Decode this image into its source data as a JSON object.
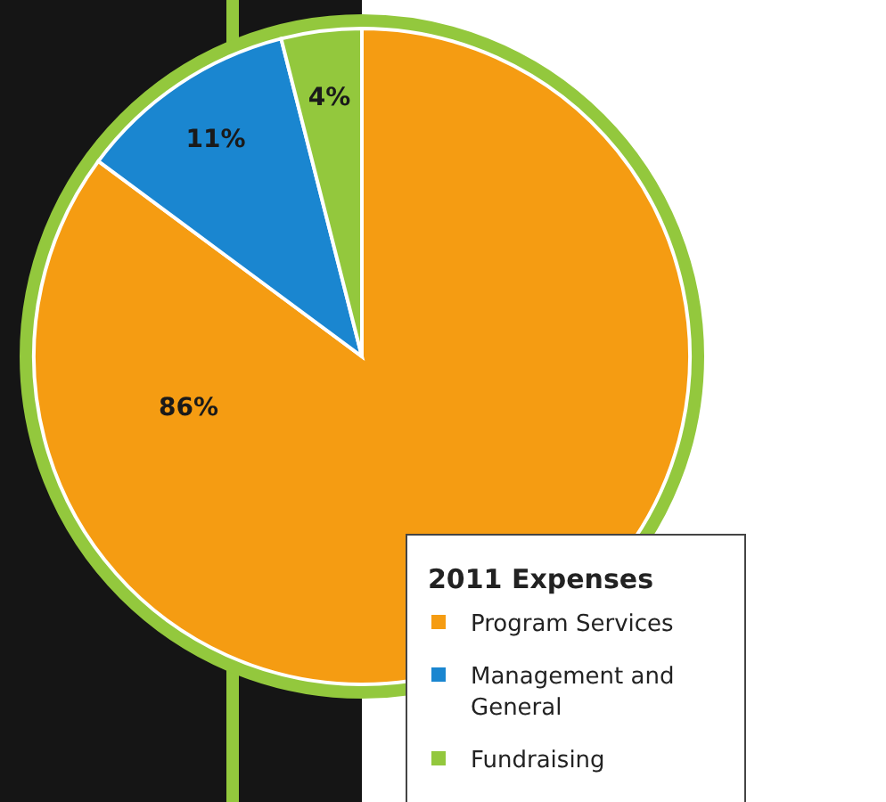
{
  "chart_data": {
    "type": "pie",
    "legend_title": "2011 Expenses",
    "legend": "bottom right",
    "value_labels": [
      "86%",
      "11%",
      "4%"
    ],
    "categories": [
      "Program Services",
      "Management and General",
      "Fundraising"
    ],
    "values": [
      86,
      11,
      4
    ],
    "colors": [
      "#f59c12",
      "#1a86d0",
      "#93c83d"
    ]
  }
}
